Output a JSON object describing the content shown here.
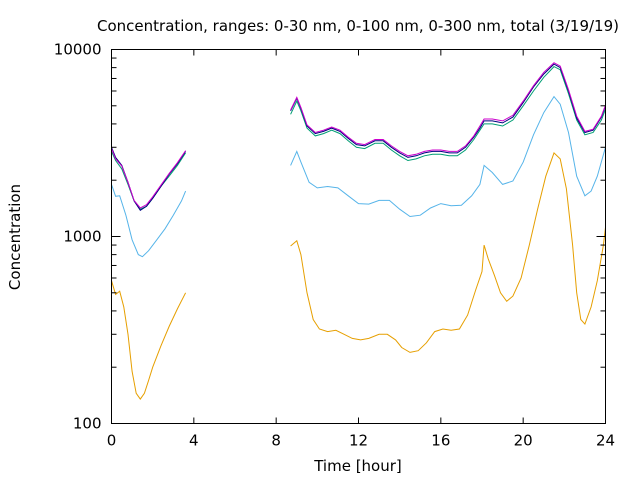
{
  "chart_data": {
    "type": "line",
    "title": "Concentration, ranges: 0-30 nm, 0-100 nm, 0-300 nm, total (3/19/19)",
    "xlabel": "Time [hour]",
    "ylabel": "Concentration",
    "xlim": [
      0,
      24
    ],
    "ylim": [
      100,
      10000
    ],
    "yscale": "log",
    "grid": false,
    "legend": "none",
    "x_ticks": [
      "0",
      "4",
      "8",
      "12",
      "16",
      "20",
      "24"
    ],
    "y_ticks": [
      "100",
      "1000",
      "10000"
    ],
    "series": [
      {
        "color": "#e69f00",
        "segments": [
          [
            [
              0,
              580
            ],
            [
              0.2,
              490
            ],
            [
              0.4,
              510
            ],
            [
              0.6,
              420
            ],
            [
              0.8,
              300
            ],
            [
              1.0,
              190
            ],
            [
              1.2,
              145
            ],
            [
              1.4,
              135
            ],
            [
              1.6,
              145
            ],
            [
              1.8,
              170
            ],
            [
              2.0,
              200
            ],
            [
              2.4,
              260
            ],
            [
              2.8,
              330
            ],
            [
              3.2,
              410
            ],
            [
              3.6,
              500
            ]
          ],
          [
            [
              8.7,
              890
            ],
            [
              9.0,
              950
            ],
            [
              9.2,
              800
            ],
            [
              9.5,
              500
            ],
            [
              9.8,
              360
            ],
            [
              10.1,
              320
            ],
            [
              10.5,
              310
            ],
            [
              10.9,
              315
            ],
            [
              11.3,
              300
            ],
            [
              11.7,
              285
            ],
            [
              12.1,
              280
            ],
            [
              12.5,
              285
            ],
            [
              13.0,
              300
            ],
            [
              13.4,
              300
            ],
            [
              13.8,
              280
            ],
            [
              14.1,
              255
            ],
            [
              14.5,
              240
            ],
            [
              14.9,
              245
            ],
            [
              15.3,
              270
            ],
            [
              15.7,
              310
            ],
            [
              16.1,
              320
            ],
            [
              16.5,
              315
            ],
            [
              16.9,
              320
            ],
            [
              17.3,
              380
            ],
            [
              17.7,
              520
            ],
            [
              18.0,
              650
            ],
            [
              18.1,
              900
            ],
            [
              18.3,
              760
            ],
            [
              18.6,
              620
            ],
            [
              18.9,
              500
            ],
            [
              19.2,
              450
            ],
            [
              19.5,
              480
            ],
            [
              19.9,
              600
            ],
            [
              20.3,
              900
            ],
            [
              20.7,
              1400
            ],
            [
              21.1,
              2100
            ],
            [
              21.5,
              2800
            ],
            [
              21.8,
              2600
            ],
            [
              22.1,
              1800
            ],
            [
              22.4,
              900
            ],
            [
              22.6,
              500
            ],
            [
              22.8,
              360
            ],
            [
              23.0,
              340
            ],
            [
              23.3,
              420
            ],
            [
              23.6,
              580
            ],
            [
              23.9,
              900
            ],
            [
              24.0,
              1120
            ]
          ]
        ]
      },
      {
        "color": "#56b4e9",
        "segments": [
          [
            [
              0,
              1900
            ],
            [
              0.2,
              1640
            ],
            [
              0.4,
              1650
            ],
            [
              0.7,
              1300
            ],
            [
              1.0,
              960
            ],
            [
              1.3,
              800
            ],
            [
              1.5,
              780
            ],
            [
              1.8,
              840
            ],
            [
              2.2,
              960
            ],
            [
              2.6,
              1100
            ],
            [
              3.0,
              1300
            ],
            [
              3.4,
              1550
            ],
            [
              3.6,
              1750
            ]
          ],
          [
            [
              8.7,
              2400
            ],
            [
              9.0,
              2850
            ],
            [
              9.2,
              2500
            ],
            [
              9.6,
              1950
            ],
            [
              10.0,
              1820
            ],
            [
              10.5,
              1850
            ],
            [
              11.0,
              1820
            ],
            [
              11.5,
              1650
            ],
            [
              12.0,
              1500
            ],
            [
              12.5,
              1490
            ],
            [
              13.0,
              1560
            ],
            [
              13.5,
              1560
            ],
            [
              14.0,
              1400
            ],
            [
              14.5,
              1280
            ],
            [
              15.0,
              1300
            ],
            [
              15.5,
              1420
            ],
            [
              16.0,
              1500
            ],
            [
              16.5,
              1460
            ],
            [
              17.0,
              1470
            ],
            [
              17.5,
              1650
            ],
            [
              17.9,
              1900
            ],
            [
              18.1,
              2400
            ],
            [
              18.5,
              2200
            ],
            [
              19.0,
              1900
            ],
            [
              19.5,
              1980
            ],
            [
              20.0,
              2500
            ],
            [
              20.5,
              3500
            ],
            [
              21.0,
              4600
            ],
            [
              21.5,
              5600
            ],
            [
              21.8,
              5100
            ],
            [
              22.2,
              3600
            ],
            [
              22.6,
              2100
            ],
            [
              23.0,
              1650
            ],
            [
              23.3,
              1750
            ],
            [
              23.6,
              2100
            ],
            [
              24.0,
              3000
            ]
          ]
        ]
      },
      {
        "color": "#009e73",
        "segments": [
          [
            [
              0,
              2850
            ],
            [
              0.2,
              2550
            ],
            [
              0.5,
              2300
            ],
            [
              0.8,
              1900
            ],
            [
              1.1,
              1550
            ],
            [
              1.4,
              1400
            ],
            [
              1.7,
              1450
            ],
            [
              2.0,
              1600
            ],
            [
              2.4,
              1850
            ],
            [
              2.8,
              2100
            ],
            [
              3.2,
              2400
            ],
            [
              3.6,
              2800
            ]
          ],
          [
            [
              8.7,
              4500
            ],
            [
              9.0,
              5300
            ],
            [
              9.2,
              4700
            ],
            [
              9.5,
              3800
            ],
            [
              9.9,
              3450
            ],
            [
              10.3,
              3550
            ],
            [
              10.7,
              3700
            ],
            [
              11.1,
              3550
            ],
            [
              11.5,
              3250
            ],
            [
              11.9,
              3000
            ],
            [
              12.3,
              2950
            ],
            [
              12.8,
              3150
            ],
            [
              13.2,
              3150
            ],
            [
              13.6,
              2900
            ],
            [
              14.0,
              2700
            ],
            [
              14.4,
              2550
            ],
            [
              14.8,
              2600
            ],
            [
              15.2,
              2700
            ],
            [
              15.6,
              2750
            ],
            [
              16.0,
              2750
            ],
            [
              16.4,
              2700
            ],
            [
              16.8,
              2700
            ],
            [
              17.2,
              2900
            ],
            [
              17.6,
              3300
            ],
            [
              17.9,
              3700
            ],
            [
              18.1,
              4000
            ],
            [
              18.5,
              4000
            ],
            [
              19.0,
              3900
            ],
            [
              19.5,
              4200
            ],
            [
              20.0,
              5000
            ],
            [
              20.5,
              6000
            ],
            [
              21.0,
              7100
            ],
            [
              21.5,
              8100
            ],
            [
              21.8,
              7800
            ],
            [
              22.2,
              5800
            ],
            [
              22.6,
              4200
            ],
            [
              23.0,
              3500
            ],
            [
              23.4,
              3600
            ],
            [
              23.8,
              4200
            ],
            [
              24.0,
              4800
            ]
          ]
        ]
      },
      {
        "color": "#000080",
        "segments": [
          [
            [
              0,
              3000
            ],
            [
              0.2,
              2650
            ],
            [
              0.5,
              2400
            ],
            [
              0.8,
              1950
            ],
            [
              1.1,
              1550
            ],
            [
              1.4,
              1380
            ],
            [
              1.7,
              1450
            ],
            [
              2.0,
              1600
            ],
            [
              2.4,
              1850
            ],
            [
              2.8,
              2150
            ],
            [
              3.2,
              2450
            ],
            [
              3.6,
              2850
            ]
          ],
          [
            [
              8.7,
              4700
            ],
            [
              9.0,
              5500
            ],
            [
              9.2,
              4850
            ],
            [
              9.5,
              3900
            ],
            [
              9.9,
              3550
            ],
            [
              10.3,
              3650
            ],
            [
              10.7,
              3800
            ],
            [
              11.1,
              3650
            ],
            [
              11.5,
              3350
            ],
            [
              11.9,
              3100
            ],
            [
              12.3,
              3050
            ],
            [
              12.8,
              3250
            ],
            [
              13.2,
              3250
            ],
            [
              13.6,
              3000
            ],
            [
              14.0,
              2800
            ],
            [
              14.4,
              2650
            ],
            [
              14.8,
              2700
            ],
            [
              15.2,
              2800
            ],
            [
              15.6,
              2850
            ],
            [
              16.0,
              2850
            ],
            [
              16.4,
              2800
            ],
            [
              16.8,
              2800
            ],
            [
              17.2,
              3000
            ],
            [
              17.6,
              3400
            ],
            [
              17.9,
              3800
            ],
            [
              18.1,
              4150
            ],
            [
              18.5,
              4150
            ],
            [
              19.0,
              4050
            ],
            [
              19.5,
              4350
            ],
            [
              20.0,
              5200
            ],
            [
              20.5,
              6300
            ],
            [
              21.0,
              7400
            ],
            [
              21.5,
              8350
            ],
            [
              21.8,
              8000
            ],
            [
              22.2,
              6000
            ],
            [
              22.6,
              4300
            ],
            [
              23.0,
              3600
            ],
            [
              23.4,
              3700
            ],
            [
              23.8,
              4350
            ],
            [
              24.0,
              5000
            ]
          ]
        ]
      },
      {
        "color": "#cc00cc",
        "segments": [
          [
            [
              0,
              2950
            ],
            [
              0.2,
              2600
            ],
            [
              0.5,
              2380
            ],
            [
              0.8,
              1950
            ],
            [
              1.1,
              1560
            ],
            [
              1.4,
              1420
            ],
            [
              1.7,
              1480
            ],
            [
              2.0,
              1630
            ],
            [
              2.4,
              1880
            ],
            [
              2.8,
              2170
            ],
            [
              3.2,
              2480
            ],
            [
              3.6,
              2880
            ]
          ],
          [
            [
              8.7,
              4750
            ],
            [
              9.0,
              5550
            ],
            [
              9.2,
              4900
            ],
            [
              9.5,
              3950
            ],
            [
              9.9,
              3600
            ],
            [
              10.3,
              3700
            ],
            [
              10.7,
              3850
            ],
            [
              11.1,
              3700
            ],
            [
              11.5,
              3400
            ],
            [
              11.9,
              3150
            ],
            [
              12.3,
              3100
            ],
            [
              12.8,
              3300
            ],
            [
              13.2,
              3300
            ],
            [
              13.6,
              3050
            ],
            [
              14.0,
              2850
            ],
            [
              14.4,
              2700
            ],
            [
              14.8,
              2750
            ],
            [
              15.2,
              2850
            ],
            [
              15.6,
              2900
            ],
            [
              16.0,
              2900
            ],
            [
              16.4,
              2850
            ],
            [
              16.8,
              2850
            ],
            [
              17.2,
              3050
            ],
            [
              17.6,
              3450
            ],
            [
              17.9,
              3900
            ],
            [
              18.1,
              4250
            ],
            [
              18.5,
              4250
            ],
            [
              19.0,
              4150
            ],
            [
              19.5,
              4450
            ],
            [
              20.0,
              5300
            ],
            [
              20.5,
              6400
            ],
            [
              21.0,
              7550
            ],
            [
              21.5,
              8500
            ],
            [
              21.8,
              8150
            ],
            [
              22.2,
              6100
            ],
            [
              22.6,
              4400
            ],
            [
              23.0,
              3650
            ],
            [
              23.4,
              3750
            ],
            [
              23.8,
              4400
            ],
            [
              24.0,
              5050
            ]
          ]
        ]
      }
    ]
  }
}
